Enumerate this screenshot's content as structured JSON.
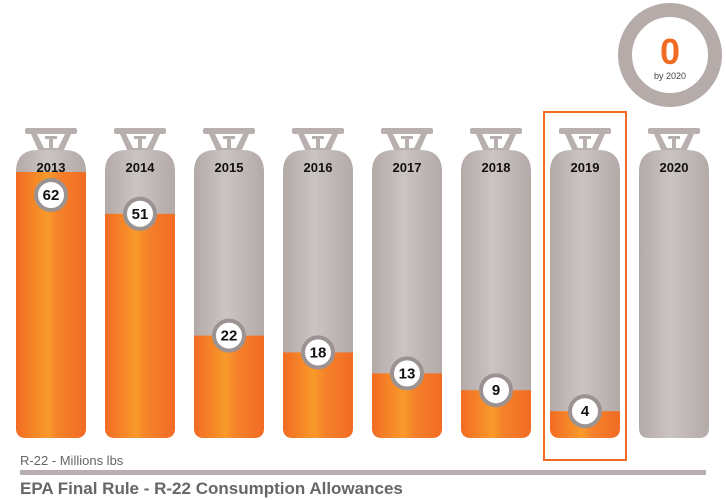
{
  "chart_data": {
    "type": "bar",
    "categories": [
      "2013",
      "2014",
      "2015",
      "2016",
      "2017",
      "2018",
      "2019",
      "2020"
    ],
    "values": [
      62,
      51,
      22,
      18,
      13,
      9,
      4,
      null
    ],
    "value_labels": [
      "62",
      "51",
      "22",
      "18",
      "13",
      "9",
      "4",
      ""
    ],
    "ylabel": "R-22 - Millions lbs",
    "title": "EPA Final Rule - R-22 Consumption Allowances",
    "highlighted_category": "2019",
    "callout": {
      "value": "0",
      "label": "by 2020"
    },
    "grid": false,
    "colors": {
      "fill": "#f26b24",
      "fill_light": "#f89a2a",
      "empty": "#b8b0ae",
      "ring": "#b5aba9",
      "highlight": "#f26b24",
      "text": "#666666"
    }
  }
}
